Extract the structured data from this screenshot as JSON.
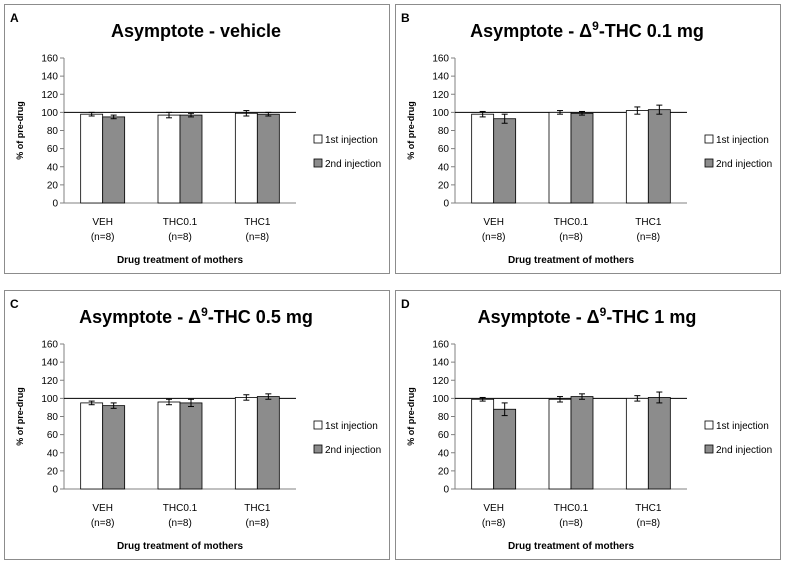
{
  "figure": {
    "x_axis_title": "Drug treatment of mothers",
    "y_axis_title": "% of pre-drug",
    "reference_line": 100,
    "legend": [
      "1st injection",
      "2nd injection"
    ],
    "colors": {
      "series1": "#ffffff",
      "series2": "#8c8c8c",
      "border": "#8c8c8c"
    }
  },
  "chart_data": [
    {
      "type": "bar",
      "panel": "A",
      "title": "Asymptote - vehicle",
      "title_parts": {
        "pre": "Asymptote - vehicle",
        "sup": "",
        "post": ""
      },
      "categories": [
        "VEH",
        "THC0.1",
        "THC1"
      ],
      "n_labels": [
        "(n=8)",
        "(n=8)",
        "(n=8)"
      ],
      "ylabel": "% of pre-drug",
      "xlabel": "Drug treatment of mothers",
      "ylim": [
        0,
        160
      ],
      "yticks": [
        0,
        20,
        40,
        60,
        80,
        100,
        120,
        140,
        160
      ],
      "series": [
        {
          "name": "1st injection",
          "values": [
            98,
            97,
            99
          ],
          "errors": [
            2,
            3,
            3
          ]
        },
        {
          "name": "2nd injection",
          "values": [
            95,
            97,
            98
          ],
          "errors": [
            2,
            2,
            2
          ]
        }
      ]
    },
    {
      "type": "bar",
      "panel": "B",
      "title": "Asymptote - Δ9-THC 0.1 mg",
      "title_parts": {
        "pre": "Asymptote - Δ",
        "sup": "9",
        "post": "-THC 0.1 mg"
      },
      "categories": [
        "VEH",
        "THC0.1",
        "THC1"
      ],
      "n_labels": [
        "(n=8)",
        "(n=8)",
        "(n=8)"
      ],
      "ylabel": "% of pre-drug",
      "xlabel": "Drug treatment of mothers",
      "ylim": [
        0,
        160
      ],
      "yticks": [
        0,
        20,
        40,
        60,
        80,
        100,
        120,
        140,
        160
      ],
      "series": [
        {
          "name": "1st injection",
          "values": [
            98,
            100,
            102
          ],
          "errors": [
            3,
            2,
            4
          ]
        },
        {
          "name": "2nd injection",
          "values": [
            93,
            99,
            103
          ],
          "errors": [
            5,
            2,
            5
          ]
        }
      ]
    },
    {
      "type": "bar",
      "panel": "C",
      "title": "Asymptote - Δ9-THC 0.5 mg",
      "title_parts": {
        "pre": "Asymptote - Δ",
        "sup": "9",
        "post": "-THC 0.5 mg"
      },
      "categories": [
        "VEH",
        "THC0.1",
        "THC1"
      ],
      "n_labels": [
        "(n=8)",
        "(n=8)",
        "(n=8)"
      ],
      "ylabel": "% of pre-drug",
      "xlabel": "Drug treatment of mothers",
      "ylim": [
        0,
        160
      ],
      "yticks": [
        0,
        20,
        40,
        60,
        80,
        100,
        120,
        140,
        160
      ],
      "series": [
        {
          "name": "1st injection",
          "values": [
            95,
            96,
            101
          ],
          "errors": [
            2,
            3,
            3
          ]
        },
        {
          "name": "2nd injection",
          "values": [
            92,
            95,
            102
          ],
          "errors": [
            3,
            4,
            3
          ]
        }
      ]
    },
    {
      "type": "bar",
      "panel": "D",
      "title": "Asymptote - Δ9-THC 1 mg",
      "title_parts": {
        "pre": "Asymptote - Δ",
        "sup": "9",
        "post": "-THC 1 mg"
      },
      "categories": [
        "VEH",
        "THC0.1",
        "THC1"
      ],
      "n_labels": [
        "(n=8)",
        "(n=8)",
        "(n=8)"
      ],
      "ylabel": "% of pre-drug",
      "xlabel": "Drug treatment of mothers",
      "ylim": [
        0,
        160
      ],
      "yticks": [
        0,
        20,
        40,
        60,
        80,
        100,
        120,
        140,
        160
      ],
      "series": [
        {
          "name": "1st injection",
          "values": [
            99,
            99,
            100
          ],
          "errors": [
            2,
            3,
            3
          ]
        },
        {
          "name": "2nd injection",
          "values": [
            88,
            102,
            101
          ],
          "errors": [
            7,
            3,
            6
          ]
        }
      ]
    }
  ]
}
